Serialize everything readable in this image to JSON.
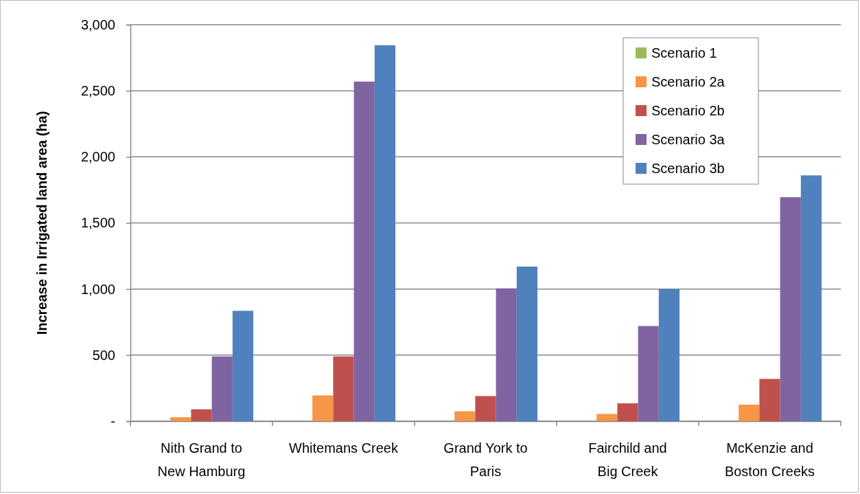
{
  "chart_data": {
    "type": "bar",
    "ylabel": "Increase in Irrigated land area (ha)",
    "categories": [
      "Nith Grand to New Hamburg",
      "Whitemans Creek",
      "Grand York to Paris",
      "Fairchild and Big Creek",
      "McKenzie and Boston Creeks"
    ],
    "series": [
      {
        "name": "Scenario 1",
        "color": "#9bbb59",
        "values": [
          0,
          0,
          0,
          0,
          0
        ]
      },
      {
        "name": "Scenario 2a",
        "color": "#f79646",
        "values": [
          30,
          195,
          75,
          55,
          125
        ]
      },
      {
        "name": "Scenario 2b",
        "color": "#c0504d",
        "values": [
          90,
          490,
          190,
          135,
          320
        ]
      },
      {
        "name": "Scenario 3a",
        "color": "#8064a2",
        "values": [
          490,
          2570,
          1005,
          720,
          1695
        ]
      },
      {
        "name": "Scenario 3b",
        "color": "#4f81bd",
        "values": [
          835,
          2845,
          1170,
          1000,
          1860
        ]
      }
    ],
    "ylim": [
      0,
      3000
    ],
    "yticks": [
      {
        "value": 0,
        "label": "-"
      },
      500,
      {
        "value": 1000,
        "label": "1,000"
      },
      {
        "value": 1500,
        "label": "1,500"
      },
      {
        "value": 2000,
        "label": "2,000"
      },
      {
        "value": 2500,
        "label": "2,500"
      },
      {
        "value": 3000,
        "label": "3,000"
      }
    ],
    "grid": "y",
    "legend": "top right"
  }
}
